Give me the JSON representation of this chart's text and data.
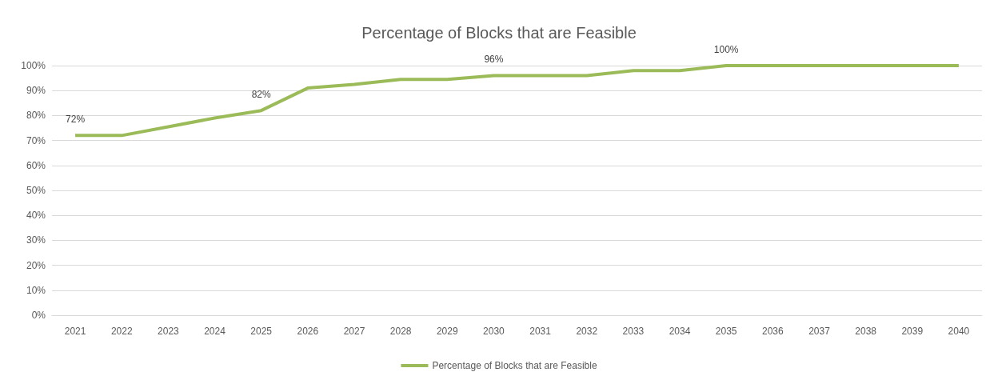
{
  "chart_data": {
    "type": "line",
    "title": "Percentage of Blocks that are Feasible",
    "categories": [
      "2021",
      "2022",
      "2023",
      "2024",
      "2025",
      "2026",
      "2027",
      "2028",
      "2029",
      "2030",
      "2031",
      "2032",
      "2033",
      "2034",
      "2035",
      "2036",
      "2037",
      "2038",
      "2039",
      "2040"
    ],
    "series": [
      {
        "name": "Percentage of Blocks that are Feasible",
        "color": "#9bbb59",
        "values": [
          72,
          72,
          75.5,
          79,
          82,
          91,
          92.5,
          94.5,
          94.5,
          96,
          96,
          96,
          98,
          98,
          100,
          100,
          100,
          100,
          100,
          100
        ],
        "value_labels": [
          "72%",
          null,
          null,
          null,
          "82%",
          null,
          null,
          null,
          null,
          "96%",
          null,
          null,
          null,
          null,
          "100%",
          null,
          null,
          null,
          null,
          null
        ]
      }
    ],
    "ylim": [
      0,
      100
    ],
    "yticks": [
      {
        "value": 0,
        "label": "0%"
      },
      {
        "value": 10,
        "label": "10%"
      },
      {
        "value": 20,
        "label": "20%"
      },
      {
        "value": 30,
        "label": "30%"
      },
      {
        "value": 40,
        "label": "40%"
      },
      {
        "value": 50,
        "label": "50%"
      },
      {
        "value": 60,
        "label": "60%"
      },
      {
        "value": 70,
        "label": "70%"
      },
      {
        "value": 80,
        "label": "80%"
      },
      {
        "value": 90,
        "label": "90%"
      },
      {
        "value": 100,
        "label": "100%"
      }
    ],
    "grid": "y",
    "legend": "bottom",
    "marker": "none",
    "line_style": "solid"
  }
}
